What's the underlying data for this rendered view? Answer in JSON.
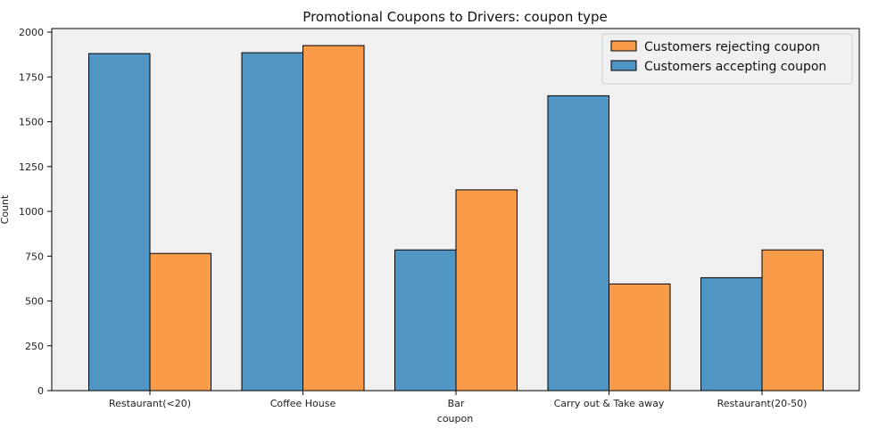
{
  "chart_data": {
    "type": "bar",
    "title": "Promotional Coupons to Drivers: coupon type",
    "xlabel": "coupon",
    "ylabel": "Count",
    "categories": [
      "Restaurant(<20)",
      "Coffee House",
      "Bar",
      "Carry out & Take away",
      "Restaurant(20-50)"
    ],
    "series": [
      {
        "name": "Customers accepting coupon",
        "color": "#5195c5",
        "values": [
          1880,
          1885,
          785,
          1645,
          630
        ]
      },
      {
        "name": "Customers rejecting coupon",
        "color": "#f99b48",
        "values": [
          765,
          1925,
          1120,
          595,
          785
        ]
      }
    ],
    "ylim": [
      0,
      2020
    ],
    "yticks": [
      0,
      250,
      500,
      750,
      1000,
      1250,
      1500,
      1750,
      2000
    ],
    "legend_order": [
      "Customers rejecting coupon",
      "Customers accepting coupon"
    ],
    "legend_position": "top-right",
    "plot_background": "#f0f0f0",
    "grid": false
  }
}
